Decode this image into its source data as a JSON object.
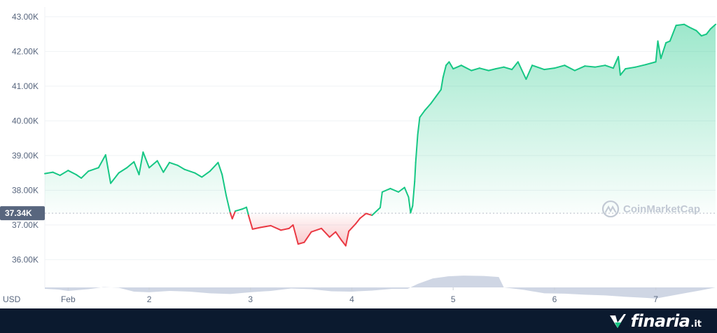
{
  "chart_data": {
    "type": "line",
    "currency_label": "USD",
    "y_ticks": [
      "36.00K",
      "37.00K",
      "38.00K",
      "39.00K",
      "40.00K",
      "41.00K",
      "42.00K",
      "43.00K"
    ],
    "ylim": [
      35200,
      43200
    ],
    "x_ticks": [
      {
        "label": "Feb",
        "day": 1.2
      },
      {
        "label": "2",
        "day": 2
      },
      {
        "label": "3",
        "day": 3
      },
      {
        "label": "4",
        "day": 4
      },
      {
        "label": "5",
        "day": 5
      },
      {
        "label": "6",
        "day": 6
      },
      {
        "label": "7",
        "day": 7
      }
    ],
    "xlim": [
      0.97,
      7.59
    ],
    "reference_price": 37340,
    "reference_label": "37.34K",
    "series": [
      {
        "type": "line",
        "points": [
          [
            0.97,
            38480
          ],
          [
            1.05,
            38520
          ],
          [
            1.12,
            38430
          ],
          [
            1.2,
            38570
          ],
          [
            1.28,
            38450
          ],
          [
            1.33,
            38350
          ],
          [
            1.4,
            38550
          ],
          [
            1.5,
            38650
          ],
          [
            1.57,
            39020
          ],
          [
            1.62,
            38200
          ],
          [
            1.7,
            38500
          ],
          [
            1.78,
            38650
          ],
          [
            1.85,
            38820
          ],
          [
            1.9,
            38450
          ],
          [
            1.94,
            39100
          ],
          [
            2.0,
            38650
          ],
          [
            2.08,
            38850
          ],
          [
            2.14,
            38520
          ],
          [
            2.2,
            38800
          ],
          [
            2.28,
            38720
          ],
          [
            2.35,
            38600
          ],
          [
            2.45,
            38500
          ],
          [
            2.52,
            38380
          ],
          [
            2.6,
            38550
          ],
          [
            2.68,
            38800
          ],
          [
            2.72,
            38450
          ],
          [
            2.76,
            37850
          ],
          [
            2.8,
            37350
          ],
          [
            2.82,
            37180
          ],
          [
            2.85,
            37400
          ],
          [
            2.92,
            37460
          ],
          [
            2.96,
            37510
          ],
          [
            2.98,
            37280
          ],
          [
            3.02,
            36880
          ],
          [
            3.1,
            36930
          ],
          [
            3.2,
            36980
          ],
          [
            3.3,
            36850
          ],
          [
            3.38,
            36900
          ],
          [
            3.42,
            37000
          ],
          [
            3.47,
            36450
          ],
          [
            3.53,
            36500
          ],
          [
            3.6,
            36800
          ],
          [
            3.7,
            36900
          ],
          [
            3.78,
            36650
          ],
          [
            3.84,
            36800
          ],
          [
            3.9,
            36550
          ],
          [
            3.94,
            36400
          ],
          [
            3.97,
            36820
          ],
          [
            4.04,
            37040
          ],
          [
            4.08,
            37190
          ],
          [
            4.14,
            37330
          ],
          [
            4.2,
            37280
          ],
          [
            4.28,
            37500
          ],
          [
            4.3,
            37950
          ],
          [
            4.38,
            38050
          ],
          [
            4.46,
            37950
          ],
          [
            4.52,
            38080
          ],
          [
            4.56,
            37800
          ],
          [
            4.58,
            37350
          ],
          [
            4.6,
            37550
          ],
          [
            4.62,
            38250
          ],
          [
            4.63,
            38800
          ],
          [
            4.65,
            39600
          ],
          [
            4.67,
            40100
          ],
          [
            4.72,
            40300
          ],
          [
            4.78,
            40500
          ],
          [
            4.83,
            40700
          ],
          [
            4.88,
            40900
          ],
          [
            4.9,
            41250
          ],
          [
            4.93,
            41600
          ],
          [
            4.96,
            41700
          ],
          [
            5.0,
            41500
          ],
          [
            5.08,
            41600
          ],
          [
            5.18,
            41450
          ],
          [
            5.26,
            41520
          ],
          [
            5.35,
            41450
          ],
          [
            5.42,
            41500
          ],
          [
            5.5,
            41550
          ],
          [
            5.58,
            41480
          ],
          [
            5.64,
            41700
          ],
          [
            5.72,
            41200
          ],
          [
            5.78,
            41600
          ],
          [
            5.9,
            41480
          ],
          [
            6.0,
            41520
          ],
          [
            6.1,
            41600
          ],
          [
            6.2,
            41450
          ],
          [
            6.3,
            41580
          ],
          [
            6.4,
            41550
          ],
          [
            6.5,
            41600
          ],
          [
            6.58,
            41520
          ],
          [
            6.63,
            41850
          ],
          [
            6.65,
            41320
          ],
          [
            6.7,
            41500
          ],
          [
            6.8,
            41550
          ],
          [
            6.9,
            41620
          ],
          [
            7.0,
            41700
          ],
          [
            7.02,
            42300
          ],
          [
            7.05,
            41800
          ],
          [
            7.1,
            42250
          ],
          [
            7.14,
            42300
          ],
          [
            7.2,
            42750
          ],
          [
            7.28,
            42780
          ],
          [
            7.33,
            42700
          ],
          [
            7.4,
            42600
          ],
          [
            7.45,
            42450
          ],
          [
            7.5,
            42500
          ],
          [
            7.54,
            42650
          ],
          [
            7.59,
            42780
          ]
        ]
      },
      {
        "type": "volume",
        "points": [
          [
            0.97,
            35160
          ],
          [
            1.1,
            35140
          ],
          [
            1.2,
            35100
          ],
          [
            1.4,
            35150
          ],
          [
            1.55,
            35210
          ],
          [
            1.7,
            35190
          ],
          [
            1.85,
            35080
          ],
          [
            2.0,
            35060
          ],
          [
            2.2,
            35100
          ],
          [
            2.4,
            35080
          ],
          [
            2.6,
            35030
          ],
          [
            2.8,
            35010
          ],
          [
            3.0,
            35060
          ],
          [
            3.2,
            35100
          ],
          [
            3.4,
            35170
          ],
          [
            3.6,
            35150
          ],
          [
            3.8,
            35090
          ],
          [
            4.0,
            35080
          ],
          [
            4.2,
            35110
          ],
          [
            4.4,
            35160
          ],
          [
            4.55,
            35160
          ],
          [
            4.65,
            35300
          ],
          [
            4.8,
            35460
          ],
          [
            4.95,
            35520
          ],
          [
            5.1,
            35540
          ],
          [
            5.3,
            35530
          ],
          [
            5.45,
            35500
          ],
          [
            5.5,
            35200
          ],
          [
            5.7,
            35130
          ],
          [
            5.9,
            35030
          ],
          [
            6.1,
            35020
          ],
          [
            6.3,
            34990
          ],
          [
            6.5,
            34970
          ],
          [
            6.7,
            34930
          ],
          [
            6.9,
            34900
          ],
          [
            7.0,
            34880
          ],
          [
            7.15,
            34960
          ],
          [
            7.3,
            35040
          ],
          [
            7.45,
            35120
          ],
          [
            7.59,
            35200
          ]
        ]
      }
    ],
    "watermark": "CoinMarketCap",
    "colors": {
      "up": "#16c784",
      "down": "#ea3943",
      "volume": "#cfd6e4",
      "grid": "#eff2f5",
      "reference": "#b6bcc6"
    }
  },
  "footer": {
    "brand_name": "finaria",
    "brand_tld": ".it",
    "logo_colors": {
      "primary": "#ffffff",
      "accent": "#16c784"
    }
  }
}
